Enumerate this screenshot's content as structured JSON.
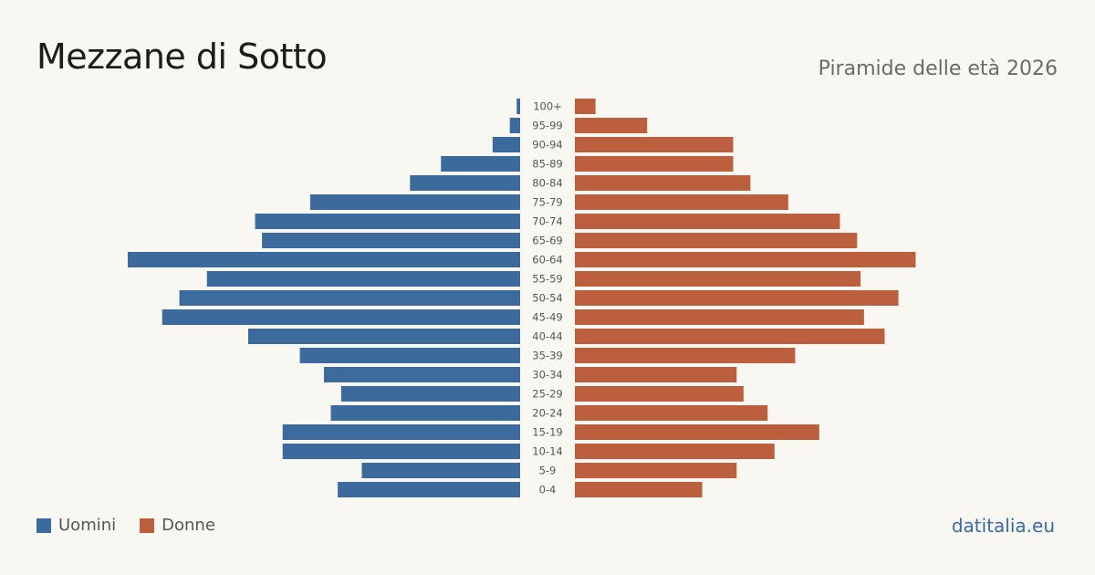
{
  "header": {
    "title": "Mezzane di Sotto",
    "subtitle": "Piramide delle età 2026"
  },
  "legend": {
    "men_label": "Uomini",
    "women_label": "Donne"
  },
  "brand": "datitalia.eu",
  "colors": {
    "men": "#3d6a9c",
    "women": "#bb5f3e",
    "background": "#f9f7f2"
  },
  "chart_data": {
    "type": "bar",
    "orientation": "horizontal-pyramid",
    "categories": [
      "100+",
      "95-99",
      "90-94",
      "85-89",
      "80-84",
      "75-79",
      "70-74",
      "65-69",
      "60-64",
      "55-59",
      "50-54",
      "45-49",
      "40-44",
      "35-39",
      "30-34",
      "25-29",
      "20-24",
      "15-19",
      "10-14",
      "5-9",
      "0-4"
    ],
    "series": [
      {
        "name": "Uomini",
        "values": [
          1,
          3,
          8,
          23,
          32,
          61,
          77,
          75,
          114,
          91,
          99,
          104,
          79,
          64,
          57,
          52,
          55,
          69,
          69,
          46,
          53
        ]
      },
      {
        "name": "Donne",
        "values": [
          6,
          21,
          46,
          46,
          51,
          62,
          77,
          82,
          99,
          83,
          94,
          84,
          90,
          64,
          47,
          49,
          56,
          71,
          58,
          47,
          37
        ]
      }
    ],
    "xlim": [
      0,
      114
    ]
  }
}
